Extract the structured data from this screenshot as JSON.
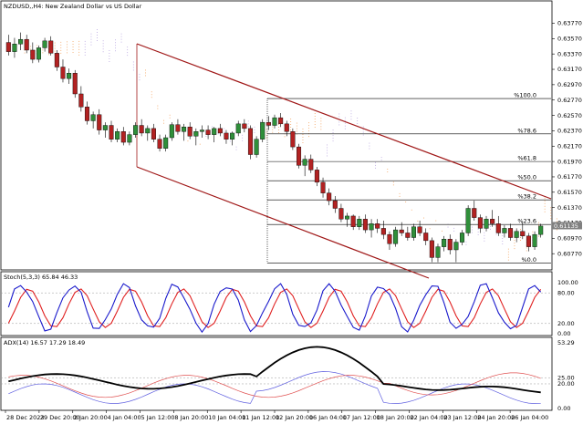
{
  "header": {
    "symbol_title": "NZDUSD,,H4: New Zealand Dollar vs US Dollar"
  },
  "colors": {
    "bull": "#2f8f3a",
    "bear": "#b22222",
    "channel": "#a01818",
    "cloud_a": "#f4a460",
    "cloud_b": "#b9a6e0",
    "fibo": "#000000",
    "stoch_main": "#1a1acc",
    "stoch_signal": "#e02020",
    "adx": "#000000",
    "plus_di": "#e05050",
    "minus_di": "#6060e0",
    "price_label_bg": "#808080"
  },
  "price_axis": {
    "ticks": [
      "0.63770",
      "0.63570",
      "0.63370",
      "0.63170",
      "0.62970",
      "0.62770",
      "0.62570",
      "0.62370",
      "0.62170",
      "0.61970",
      "0.61770",
      "0.61570",
      "0.61370",
      "0.61170",
      "0.60970",
      "0.60770"
    ],
    "current_price": "0.61135",
    "range": [
      0.6063,
      0.6393
    ]
  },
  "fibonacci": {
    "levels": [
      {
        "label": "%100.0",
        "price": 0.6279
      },
      {
        "label": "%78.6",
        "price": 0.6233
      },
      {
        "label": "%61.8",
        "price": 0.6197
      },
      {
        "label": "%50.0",
        "price": 0.6172
      },
      {
        "label": "%38.2",
        "price": 0.6147
      },
      {
        "label": "%23.6",
        "price": 0.6115
      },
      {
        "label": "%0.0",
        "price": 0.6065
      }
    ]
  },
  "stoch": {
    "title": "Stoch(5,3,3) 65.84 46.33",
    "ticks": [
      "100.00",
      "80.00",
      "20.00",
      "0.00"
    ],
    "range": [
      0,
      100
    ]
  },
  "adx": {
    "title": "ADX(14) 16.57 17.29 18.49",
    "ticks": [
      "53.29",
      "25.00",
      "20.00",
      "0.00"
    ],
    "range": [
      0,
      53.29
    ]
  },
  "time_axis": {
    "labels": [
      "28 Dec 2023",
      "29 Dec 20:00",
      "2 Jan 20:00",
      "4 Jan 04:00",
      "5 Jan 12:00",
      "8 Jan 20:00",
      "10 Jan 04:00",
      "11 Jan 12:00",
      "12 Jan 20:00",
      "16 Jan 04:00",
      "17 Jan 12:00",
      "18 Jan 20:00",
      "22 Jan 04:00",
      "23 Jan 12:00",
      "24 Jan 20:00",
      "26 Jan 04:00"
    ]
  },
  "chart_data": {
    "type": "candlestick",
    "title": "NZDUSD,,H4: New Zealand Dollar vs US Dollar",
    "ohlc": [
      [
        0.6352,
        0.6362,
        0.6335,
        0.634
      ],
      [
        0.634,
        0.6358,
        0.6332,
        0.635
      ],
      [
        0.635,
        0.6365,
        0.6342,
        0.6356
      ],
      [
        0.6356,
        0.6362,
        0.6338,
        0.6342
      ],
      [
        0.6342,
        0.6352,
        0.6325,
        0.633
      ],
      [
        0.633,
        0.6348,
        0.6326,
        0.6345
      ],
      [
        0.6345,
        0.6358,
        0.634,
        0.6354
      ],
      [
        0.6354,
        0.636,
        0.6335,
        0.6338
      ],
      [
        0.6338,
        0.6342,
        0.6315,
        0.632
      ],
      [
        0.632,
        0.633,
        0.63,
        0.6305
      ],
      [
        0.6305,
        0.6318,
        0.6298,
        0.6312
      ],
      [
        0.6312,
        0.6316,
        0.628,
        0.6285
      ],
      [
        0.6285,
        0.6295,
        0.6262,
        0.6268
      ],
      [
        0.6268,
        0.6275,
        0.6245,
        0.625
      ],
      [
        0.625,
        0.6262,
        0.624,
        0.6258
      ],
      [
        0.6258,
        0.6265,
        0.6232,
        0.6238
      ],
      [
        0.6238,
        0.6248,
        0.6228,
        0.6244
      ],
      [
        0.6244,
        0.625,
        0.6222,
        0.6226
      ],
      [
        0.6226,
        0.624,
        0.6222,
        0.6236
      ],
      [
        0.6236,
        0.6242,
        0.6218,
        0.6222
      ],
      [
        0.6222,
        0.6236,
        0.6218,
        0.6232
      ],
      [
        0.6232,
        0.6248,
        0.6228,
        0.6244
      ],
      [
        0.6244,
        0.6252,
        0.623,
        0.6234
      ],
      [
        0.6234,
        0.6244,
        0.6224,
        0.624
      ],
      [
        0.624,
        0.6246,
        0.6222,
        0.6226
      ],
      [
        0.6226,
        0.6232,
        0.621,
        0.6214
      ],
      [
        0.6214,
        0.6232,
        0.621,
        0.6228
      ],
      [
        0.6228,
        0.6248,
        0.6224,
        0.6245
      ],
      [
        0.6245,
        0.6252,
        0.6232,
        0.6236
      ],
      [
        0.6236,
        0.6246,
        0.6224,
        0.6242
      ],
      [
        0.6242,
        0.6248,
        0.6226,
        0.623
      ],
      [
        0.623,
        0.624,
        0.6218,
        0.6236
      ],
      [
        0.6236,
        0.6244,
        0.6228,
        0.6238
      ],
      [
        0.6238,
        0.6244,
        0.6226,
        0.6232
      ],
      [
        0.6232,
        0.6242,
        0.6222,
        0.624
      ],
      [
        0.624,
        0.6246,
        0.623,
        0.6234
      ],
      [
        0.6234,
        0.6238,
        0.622,
        0.6226
      ],
      [
        0.6226,
        0.6236,
        0.6218,
        0.6234
      ],
      [
        0.6234,
        0.625,
        0.623,
        0.6246
      ],
      [
        0.6246,
        0.6252,
        0.6235,
        0.624
      ],
      [
        0.624,
        0.6244,
        0.62,
        0.6206
      ],
      [
        0.6206,
        0.623,
        0.6202,
        0.6226
      ],
      [
        0.6226,
        0.6252,
        0.6222,
        0.6248
      ],
      [
        0.6248,
        0.6256,
        0.6238,
        0.6244
      ],
      [
        0.6244,
        0.6258,
        0.624,
        0.6254
      ],
      [
        0.6254,
        0.626,
        0.6242,
        0.6246
      ],
      [
        0.6246,
        0.625,
        0.623,
        0.6236
      ],
      [
        0.6236,
        0.624,
        0.6212,
        0.6216
      ],
      [
        0.6216,
        0.622,
        0.6188,
        0.6192
      ],
      [
        0.6192,
        0.6205,
        0.6178,
        0.62
      ],
      [
        0.62,
        0.6206,
        0.6182,
        0.6186
      ],
      [
        0.6186,
        0.619,
        0.6165,
        0.617
      ],
      [
        0.617,
        0.6176,
        0.615,
        0.6156
      ],
      [
        0.6156,
        0.6162,
        0.614,
        0.6146
      ],
      [
        0.6146,
        0.6152,
        0.613,
        0.6136
      ],
      [
        0.6136,
        0.6142,
        0.6118,
        0.6122
      ],
      [
        0.6122,
        0.613,
        0.6112,
        0.6126
      ],
      [
        0.6126,
        0.6128,
        0.6108,
        0.6112
      ],
      [
        0.6112,
        0.6126,
        0.6108,
        0.6122
      ],
      [
        0.6122,
        0.6128,
        0.6104,
        0.6108
      ],
      [
        0.6108,
        0.6122,
        0.6098,
        0.6116
      ],
      [
        0.6116,
        0.6122,
        0.6104,
        0.611
      ],
      [
        0.611,
        0.612,
        0.6096,
        0.6102
      ],
      [
        0.6102,
        0.6106,
        0.6082,
        0.609
      ],
      [
        0.609,
        0.6112,
        0.6086,
        0.6108
      ],
      [
        0.6108,
        0.6118,
        0.61,
        0.6104
      ],
      [
        0.6104,
        0.6112,
        0.6094,
        0.6098
      ],
      [
        0.6098,
        0.6116,
        0.6094,
        0.6112
      ],
      [
        0.6112,
        0.612,
        0.61,
        0.6104
      ],
      [
        0.6104,
        0.611,
        0.6088,
        0.6094
      ],
      [
        0.6094,
        0.6098,
        0.6066,
        0.6072
      ],
      [
        0.6072,
        0.609,
        0.6066,
        0.6086
      ],
      [
        0.6086,
        0.61,
        0.608,
        0.6096
      ],
      [
        0.6096,
        0.6102,
        0.6076,
        0.6082
      ],
      [
        0.6082,
        0.6096,
        0.6066,
        0.6092
      ],
      [
        0.6092,
        0.6108,
        0.6088,
        0.6104
      ],
      [
        0.6104,
        0.614,
        0.61,
        0.6136
      ],
      [
        0.6136,
        0.6146,
        0.612,
        0.6124
      ],
      [
        0.6124,
        0.6128,
        0.6104,
        0.611
      ],
      [
        0.611,
        0.6126,
        0.6106,
        0.6122
      ],
      [
        0.6122,
        0.6134,
        0.6112,
        0.6116
      ],
      [
        0.6116,
        0.6126,
        0.61,
        0.6104
      ],
      [
        0.6104,
        0.6114,
        0.6098,
        0.611
      ],
      [
        0.611,
        0.6116,
        0.6094,
        0.6098
      ],
      [
        0.6098,
        0.611,
        0.6092,
        0.6106
      ],
      [
        0.6106,
        0.6118,
        0.6096,
        0.61
      ],
      [
        0.61,
        0.6104,
        0.608,
        0.6086
      ],
      [
        0.6086,
        0.6106,
        0.6082,
        0.6102
      ],
      [
        0.6102,
        0.6116,
        0.6098,
        0.6113
      ]
    ]
  }
}
